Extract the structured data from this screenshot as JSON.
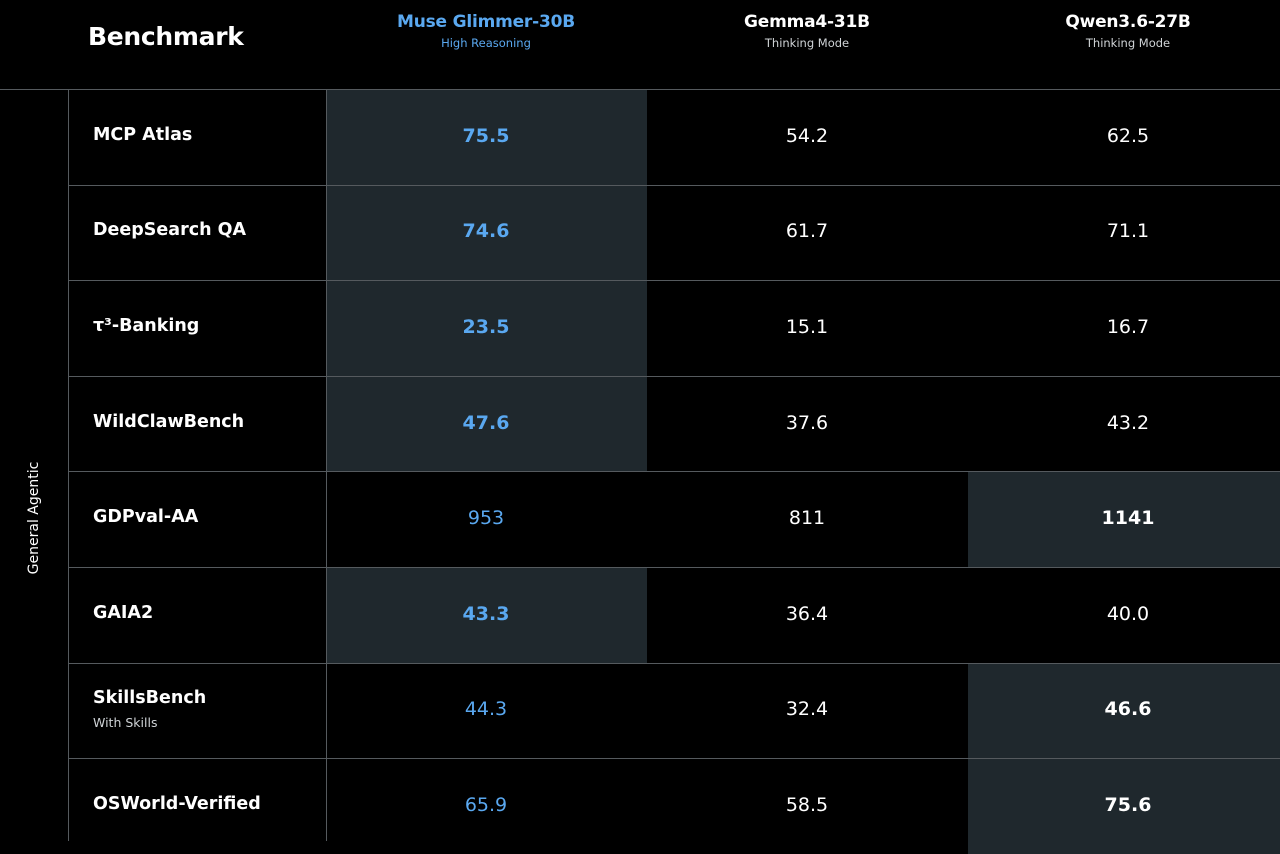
{
  "header": {
    "title": "Benchmark"
  },
  "group_label": "General Agentic",
  "colors": {
    "accent": "#5aa8f0",
    "text": "#ffffff",
    "highlight_cell": "#1f282d",
    "grid": "#555a5e"
  },
  "chart_data": {
    "type": "table",
    "title": "",
    "columns": [
      {
        "name": "Muse Glimmer-30B",
        "mode": "High Reasoning"
      },
      {
        "name": "Gemma4-31B",
        "mode": "Thinking Mode"
      },
      {
        "name": "Qwen3.6-27B",
        "mode": "Thinking Mode"
      }
    ],
    "rows": [
      {
        "label": "MCP Atlas",
        "sublabel": "",
        "values": [
          "75.5",
          "54.2",
          "62.5"
        ],
        "best": 0
      },
      {
        "label": "DeepSearch QA",
        "sublabel": "",
        "values": [
          "74.6",
          "61.7",
          "71.1"
        ],
        "best": 0
      },
      {
        "label": "τ³-Banking",
        "sublabel": "",
        "values": [
          "23.5",
          "15.1",
          "16.7"
        ],
        "best": 0
      },
      {
        "label": "WildClawBench",
        "sublabel": "",
        "values": [
          "47.6",
          "37.6",
          "43.2"
        ],
        "best": 0
      },
      {
        "label": "GDPval-AA",
        "sublabel": "",
        "values": [
          "953",
          "811",
          "1141"
        ],
        "best": 2
      },
      {
        "label": "GAIA2",
        "sublabel": "",
        "values": [
          "43.3",
          "36.4",
          "40.0"
        ],
        "best": 0
      },
      {
        "label": "SkillsBench",
        "sublabel": "With Skills",
        "values": [
          "44.3",
          "32.4",
          "46.6"
        ],
        "best": 2
      },
      {
        "label": "OSWorld-Verified",
        "sublabel": "",
        "values": [
          "65.9",
          "58.5",
          "75.6"
        ],
        "best": 2
      }
    ]
  }
}
